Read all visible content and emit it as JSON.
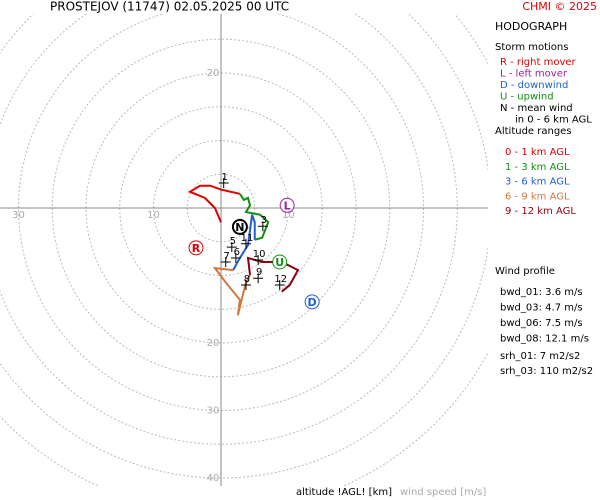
{
  "chart_data": {
    "type": "hodograph",
    "title": "PROSTEJOV (11747)    02.05.2025 00 UTC",
    "credit": "CHMI © 2025",
    "panel_title": "HODOGRAPH",
    "xlabel": "altitude !AGL! [km]",
    "ylabel": "wind speed [m/s]",
    "rings": [
      5,
      10,
      15,
      20,
      25,
      30,
      35,
      40,
      45
    ],
    "xticks": [
      {
        "value": -30,
        "label": "30"
      },
      {
        "value": -10,
        "label": "10"
      },
      10
    ],
    "yticks": [
      20,
      {
        "value": -20,
        "label": "20"
      },
      {
        "value": -30,
        "label": "30"
      },
      {
        "value": -40,
        "label": "40"
      }
    ],
    "series": [
      {
        "name": "0 - 1 km AGL",
        "color": "#e00000",
        "u": [
          0,
          -0.9,
          -2.4,
          -4.6,
          -3.1,
          -1.6,
          0.1,
          2.8
        ],
        "v": [
          -2.1,
          0,
          1.5,
          2.4,
          3.3,
          3.3,
          2.7,
          2.1
        ]
      },
      {
        "name": "1 - 3 km AGL",
        "color": "#109010",
        "u": [
          2.8,
          3.4,
          4,
          4.3,
          3.7,
          5.8,
          7,
          6.1,
          5
        ],
        "v": [
          2.1,
          1.2,
          1.5,
          0.4,
          -0.6,
          -1,
          -2.1,
          -4.4,
          -4.7
        ]
      },
      {
        "name": "3 - 6 km AGL",
        "color": "#2060d0",
        "u": [
          5,
          5,
          4.6,
          4.3,
          4,
          2.8,
          1.8
        ],
        "v": [
          -4.7,
          -2.1,
          -1,
          -3.3,
          -5.5,
          -7.4,
          -9.2
        ]
      },
      {
        "name": "6 - 9 km AGL",
        "color": "#d07840",
        "u": [
          1.8,
          -0.9,
          1,
          2.8,
          2.5,
          3.6,
          4.3
        ],
        "v": [
          -9.2,
          -8.9,
          -11.4,
          -13.6,
          -15.9,
          -11.4,
          -9.9
        ]
      },
      {
        "name": "9 - 12 km AGL",
        "color": "#900010",
        "u": [
          4.3,
          4,
          6.1,
          9,
          11.4,
          10.2,
          9
        ],
        "v": [
          -9.9,
          -7.4,
          -8,
          -8,
          -9.2,
          -11.4,
          -12.4
        ]
      }
    ],
    "height_labels": [
      {
        "label": "1",
        "u": 0.4,
        "v": 3.7
      },
      {
        "label": "3",
        "u": 6.2,
        "v": -2.7
      },
      {
        "label": "5",
        "u": 1.6,
        "v": -5.8
      },
      {
        "label": "6",
        "u": 2.2,
        "v": -7.4
      },
      {
        "label": "7",
        "u": 0.7,
        "v": -8
      },
      {
        "label": "8",
        "u": 3.7,
        "v": -11.4
      },
      {
        "label": "9",
        "u": 5.5,
        "v": -10.4
      },
      {
        "label": "10",
        "u": 5.5,
        "v": -7.7
      },
      {
        "label": "11",
        "u": 3.7,
        "v": -5.3
      },
      {
        "label": "12",
        "u": 8.7,
        "v": -11.4
      }
    ],
    "storm_motions": [
      {
        "label": "R",
        "color": "#e00000",
        "u": -3.7,
        "v": -5.9
      },
      {
        "label": "L",
        "color": "#a020a0",
        "u": 9.8,
        "v": 0.4
      },
      {
        "label": "D",
        "color": "#2060d0",
        "u": 13.5,
        "v": -13.9
      },
      {
        "label": "U",
        "color": "#109010",
        "u": 8.7,
        "v": -8
      },
      {
        "label": "N",
        "color": "#000000",
        "u": 2.8,
        "v": -2.8
      }
    ],
    "storm_title": "Storm motions",
    "storm_legend": [
      {
        "text": "R - right mover",
        "color": "#e00000"
      },
      {
        "text": "L - left mover",
        "color": "#a020a0"
      },
      {
        "text": "D - downwind",
        "color": "#2060d0"
      },
      {
        "text": "U - upwind",
        "color": "#109010"
      },
      {
        "text": "N - mean wind",
        "color": "#000000"
      },
      {
        "text": "in 0 - 6 km AGL",
        "color": "#000000"
      }
    ],
    "altitude_title": "Altitude ranges",
    "profile_title": "Wind profile",
    "profile": [
      "bwd_01: 3.6 m/s",
      "bwd_03: 4.7 m/s",
      "bwd_06: 7.5 m/s",
      "bwd_08: 12.1 m/s",
      "srh_01: 7 m2/s2",
      "srh_03: 110 m2/s2"
    ]
  }
}
